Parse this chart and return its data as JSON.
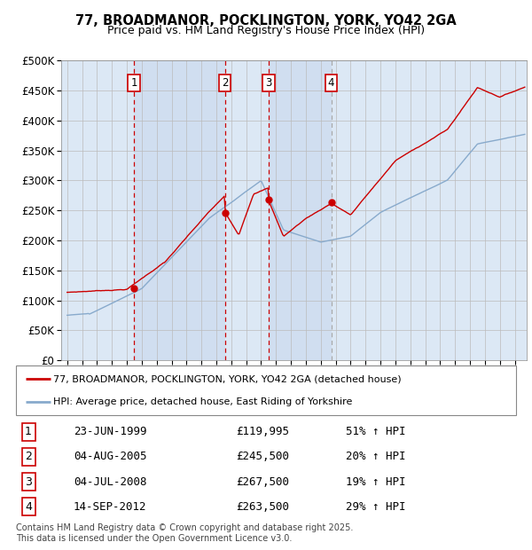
{
  "title": "77, BROADMANOR, POCKLINGTON, YORK, YO42 2GA",
  "subtitle": "Price paid vs. HM Land Registry's House Price Index (HPI)",
  "background_color": "#dce8f5",
  "plot_background": "#ffffff",
  "ylim": [
    0,
    500000
  ],
  "yticks": [
    0,
    50000,
    100000,
    150000,
    200000,
    250000,
    300000,
    350000,
    400000,
    450000,
    500000
  ],
  "ytick_labels": [
    "£0",
    "£50K",
    "£100K",
    "£150K",
    "£200K",
    "£250K",
    "£300K",
    "£350K",
    "£400K",
    "£450K",
    "£500K"
  ],
  "legend_entry1": "77, BROADMANOR, POCKLINGTON, YORK, YO42 2GA (detached house)",
  "legend_entry2": "HPI: Average price, detached house, East Riding of Yorkshire",
  "sale_markers": [
    {
      "num": 1,
      "date": "23-JUN-1999",
      "price": 119995,
      "price_str": "£119,995",
      "pct": "51%",
      "year_x": 1999.47,
      "vline_color": "#cc0000"
    },
    {
      "num": 2,
      "date": "04-AUG-2005",
      "price": 245500,
      "price_str": "£245,500",
      "pct": "20%",
      "year_x": 2005.58,
      "vline_color": "#cc0000"
    },
    {
      "num": 3,
      "date": "04-JUL-2008",
      "price": 267500,
      "price_str": "£267,500",
      "pct": "19%",
      "year_x": 2008.5,
      "vline_color": "#cc0000"
    },
    {
      "num": 4,
      "date": "14-SEP-2012",
      "price": 263500,
      "price_str": "£263,500",
      "pct": "29%",
      "year_x": 2012.7,
      "vline_color": "#aaaaaa"
    }
  ],
  "footnote": "Contains HM Land Registry data © Crown copyright and database right 2025.\nThis data is licensed under the Open Government Licence v3.0.",
  "line_color_red": "#cc0000",
  "line_color_blue": "#88aacc",
  "marker_box_color": "#cc0000",
  "shade_color": "#c8d8ee",
  "xlim_left": 1994.6,
  "xlim_right": 2025.8
}
